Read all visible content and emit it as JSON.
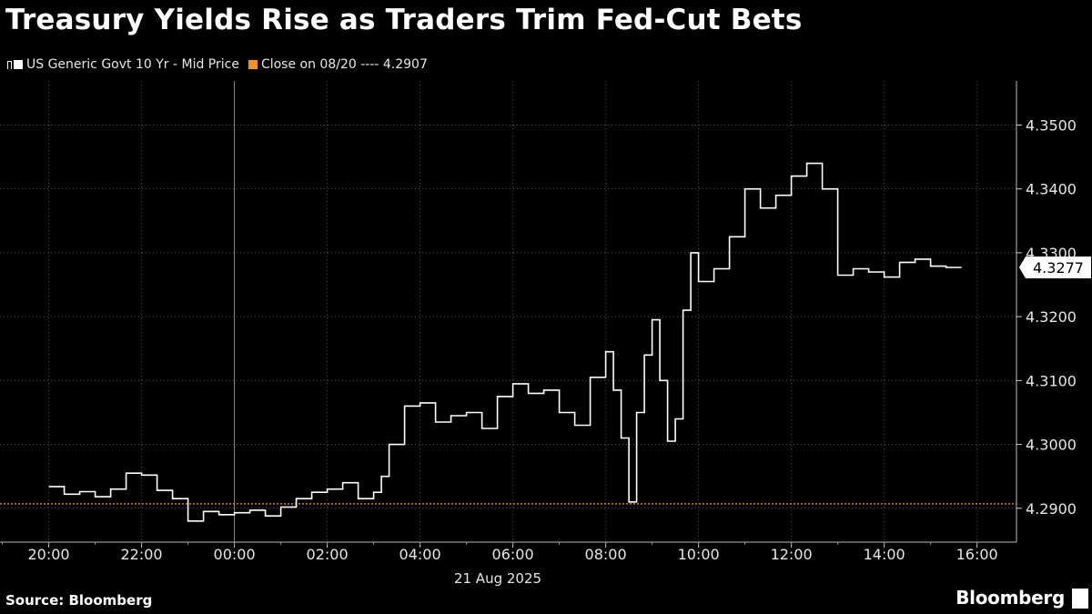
{
  "title": "Treasury Yields Rise as Traders Trim Fed-Cut Bets",
  "legend": {
    "series_label": "US Generic Govt 10 Yr - Mid Price",
    "reference_label": "Close on 08/20 ---- 4.2907"
  },
  "footer": {
    "source": "Source: Bloomberg",
    "brand": "Bloomberg"
  },
  "colors": {
    "background": "#000000",
    "line": "#ffffff",
    "reference": "#f7931e",
    "grid": "#555555",
    "tag_bg": "#ffffff",
    "tag_text": "#000000"
  },
  "chart_data": {
    "type": "line",
    "title": "Treasury Yields Rise as Traders Trim Fed-Cut Bets",
    "xlabel": "21 Aug 2025",
    "ylabel": "",
    "x_ticks": [
      "20:00",
      "22:00",
      "00:00",
      "02:00",
      "04:00",
      "06:00",
      "08:00",
      "10:00",
      "12:00",
      "14:00",
      "16:00"
    ],
    "y_ticks": [
      "4.2900",
      "4.3000",
      "4.3100",
      "4.3200",
      "4.3300",
      "4.3400",
      "4.3500"
    ],
    "ylim": [
      4.2847,
      4.3569
    ],
    "xlim_hours": [
      18.95,
      16.85
    ],
    "grid": true,
    "series": [
      {
        "name": "US Generic Govt 10 Yr - Mid Price",
        "x": [
          "20:00",
          "20:20",
          "20:40",
          "21:00",
          "21:20",
          "21:40",
          "22:00",
          "22:20",
          "22:40",
          "23:00",
          "23:20",
          "23:40",
          "00:00",
          "00:20",
          "00:40",
          "01:00",
          "01:20",
          "01:40",
          "02:00",
          "02:20",
          "02:40",
          "03:00",
          "03:10",
          "03:20",
          "03:40",
          "04:00",
          "04:20",
          "04:40",
          "05:00",
          "05:20",
          "05:40",
          "06:00",
          "06:20",
          "06:40",
          "07:00",
          "07:20",
          "07:40",
          "08:00",
          "08:10",
          "08:20",
          "08:30",
          "08:40",
          "08:50",
          "09:00",
          "09:10",
          "09:20",
          "09:30",
          "09:40",
          "09:50",
          "10:00",
          "10:20",
          "10:40",
          "11:00",
          "11:20",
          "11:40",
          "12:00",
          "12:20",
          "12:40",
          "13:00",
          "13:20",
          "13:40",
          "14:00",
          "14:20",
          "14:40",
          "15:00",
          "15:20",
          "15:40"
        ],
        "values": [
          4.2934,
          4.2922,
          4.2926,
          4.2918,
          4.293,
          4.2955,
          4.2952,
          4.2928,
          4.2915,
          4.288,
          4.2895,
          4.289,
          4.2893,
          4.2897,
          4.2888,
          4.2902,
          4.2915,
          4.2925,
          4.293,
          4.294,
          4.2915,
          4.2925,
          4.295,
          4.3,
          4.306,
          4.3065,
          4.3035,
          4.3045,
          4.305,
          4.3025,
          4.3075,
          4.3095,
          4.308,
          4.3085,
          4.305,
          4.303,
          4.3105,
          4.3145,
          4.3085,
          4.301,
          4.291,
          4.305,
          4.314,
          4.3195,
          4.31,
          4.3005,
          4.304,
          4.321,
          4.33,
          4.3255,
          4.3275,
          4.3325,
          4.34,
          4.337,
          4.339,
          4.342,
          4.344,
          4.34,
          4.3265,
          4.3275,
          4.327,
          4.3262,
          4.3285,
          4.329,
          4.3279,
          4.3277,
          4.3277
        ]
      }
    ],
    "reference_line": {
      "name": "Close on 08/20",
      "value": 4.2907
    },
    "last_value": 4.3277
  }
}
